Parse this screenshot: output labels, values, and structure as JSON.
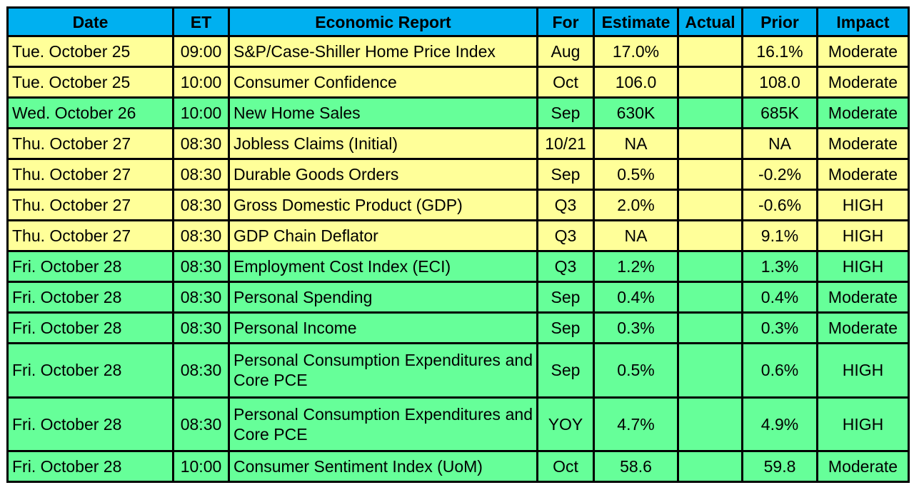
{
  "table": {
    "headers": [
      "Date",
      "ET",
      "Economic Report",
      "For",
      "Estimate",
      "Actual",
      "Prior",
      "Impact"
    ],
    "rows": [
      {
        "color": "yellow",
        "date": "Tue. October 25",
        "et": "09:00",
        "report": "S&P/Case-Shiller Home Price Index",
        "for": "Aug",
        "estimate": "17.0%",
        "actual": "",
        "prior": "16.1%",
        "impact": "Moderate"
      },
      {
        "color": "yellow",
        "date": "Tue. October 25",
        "et": "10:00",
        "report": "Consumer Confidence",
        "for": "Oct",
        "estimate": "106.0",
        "actual": "",
        "prior": "108.0",
        "impact": "Moderate"
      },
      {
        "color": "green",
        "date": "Wed. October 26",
        "et": "10:00",
        "report": "New Home Sales",
        "for": "Sep",
        "estimate": "630K",
        "actual": "",
        "prior": "685K",
        "impact": "Moderate"
      },
      {
        "color": "yellow",
        "date": "Thu. October 27",
        "et": "08:30",
        "report": "Jobless Claims (Initial)",
        "for": "10/21",
        "estimate": "NA",
        "actual": "",
        "prior": "NA",
        "impact": "Moderate"
      },
      {
        "color": "yellow",
        "date": "Thu. October 27",
        "et": "08:30",
        "report": "Durable Goods Orders",
        "for": "Sep",
        "estimate": "0.5%",
        "actual": "",
        "prior": "-0.2%",
        "impact": "Moderate"
      },
      {
        "color": "yellow",
        "date": "Thu. October 27",
        "et": "08:30",
        "report": "Gross Domestic Product (GDP)",
        "for": "Q3",
        "estimate": "2.0%",
        "actual": "",
        "prior": "-0.6%",
        "impact": "HIGH"
      },
      {
        "color": "yellow",
        "date": "Thu. October 27",
        "et": "08:30",
        "report": "GDP Chain Deflator",
        "for": "Q3",
        "estimate": "NA",
        "actual": "",
        "prior": "9.1%",
        "impact": "HIGH"
      },
      {
        "color": "green",
        "date": "Fri. October 28",
        "et": "08:30",
        "report": "Employment Cost Index (ECI)",
        "for": "Q3",
        "estimate": "1.2%",
        "actual": "",
        "prior": "1.3%",
        "impact": "HIGH"
      },
      {
        "color": "green",
        "date": "Fri. October 28",
        "et": "08:30",
        "report": "Personal Spending",
        "for": "Sep",
        "estimate": "0.4%",
        "actual": "",
        "prior": "0.4%",
        "impact": "Moderate"
      },
      {
        "color": "green",
        "date": "Fri. October 28",
        "et": "08:30",
        "report": "Personal Income",
        "for": "Sep",
        "estimate": "0.3%",
        "actual": "",
        "prior": "0.3%",
        "impact": "Moderate"
      },
      {
        "color": "green",
        "tall": true,
        "date": "Fri. October 28",
        "et": "08:30",
        "report": "Personal Consumption Expenditures and Core PCE",
        "for": "Sep",
        "estimate": "0.5%",
        "actual": "",
        "prior": "0.6%",
        "impact": "HIGH"
      },
      {
        "color": "green",
        "tall": true,
        "date": "Fri. October 28",
        "et": "08:30",
        "report": "Personal Consumption Expenditures and Core PCE",
        "for": "YOY",
        "estimate": "4.7%",
        "actual": "",
        "prior": "4.9%",
        "impact": "HIGH"
      },
      {
        "color": "green",
        "date": "Fri. October 28",
        "et": "10:00",
        "report": "Consumer Sentiment Index (UoM)",
        "for": "Oct",
        "estimate": "58.6",
        "actual": "",
        "prior": "59.8",
        "impact": "Moderate"
      }
    ]
  },
  "colors": {
    "header": "#00b0f0",
    "yellow_row": "#ffff99",
    "green_row": "#66ff99",
    "border": "#000000"
  }
}
